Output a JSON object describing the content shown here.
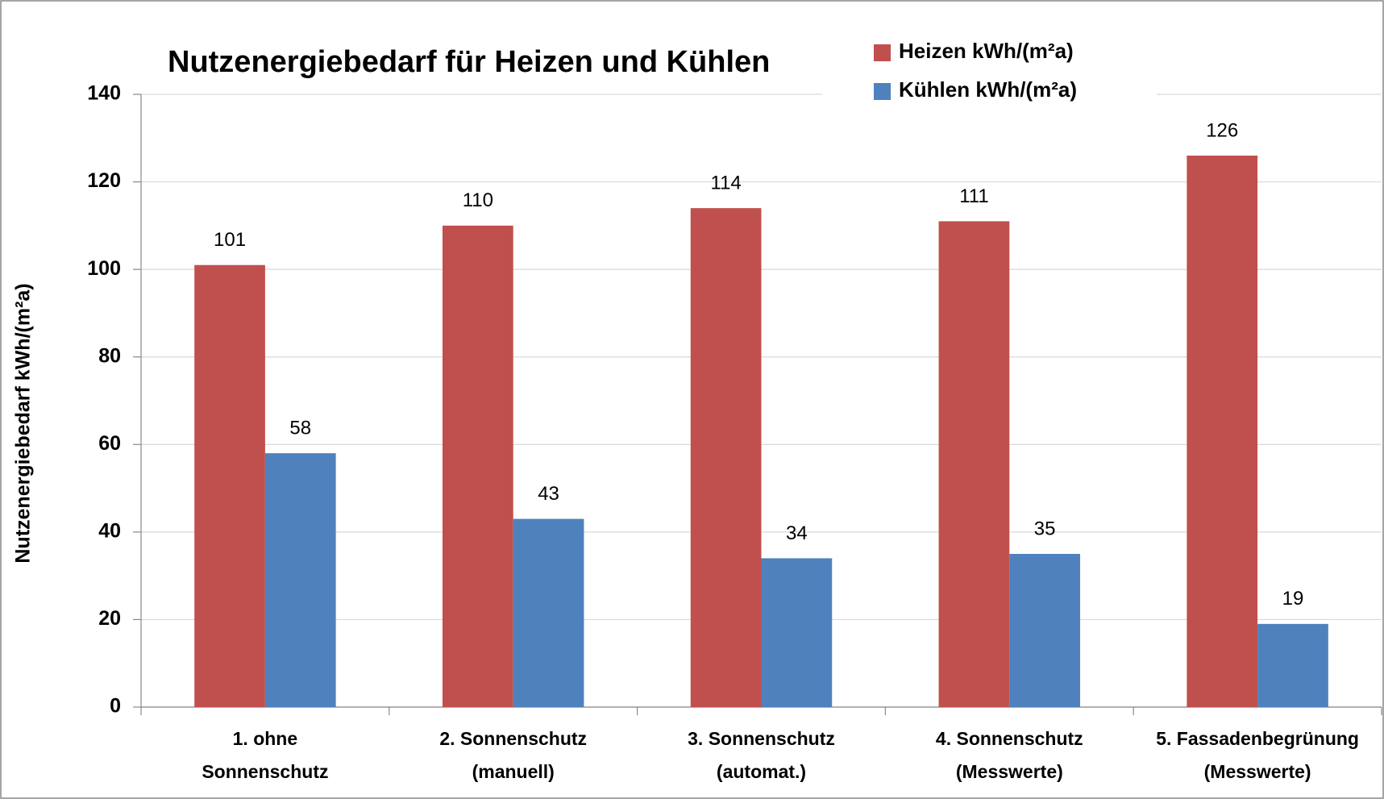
{
  "chart_data": {
    "type": "bar",
    "title": "Nutzenergiebedarf für Heizen und Kühlen",
    "y_label": "Nutzenergiebedarf kWh/(m²a)",
    "categories": [
      [
        "1. ohne",
        "Sonnenschutz"
      ],
      [
        "2. Sonnenschutz",
        "(manuell)"
      ],
      [
        "3. Sonnenschutz",
        "(automat.)"
      ],
      [
        "4. Sonnenschutz",
        "(Messwerte)"
      ],
      [
        "5. Fassadenbegrünung",
        "(Messwerte)"
      ]
    ],
    "series": [
      {
        "name": "Heizen kWh/(m²a)",
        "color": "#c0504d",
        "values": [
          101,
          110,
          114,
          111,
          126
        ]
      },
      {
        "name": "Kühlen kWh/(m²a)",
        "color": "#4f81bd",
        "values": [
          58,
          43,
          34,
          35,
          19
        ]
      }
    ],
    "ylim": [
      0,
      140
    ],
    "yticks": [
      0,
      20,
      40,
      60,
      80,
      100,
      120,
      140
    ],
    "grid": true,
    "legend": "top-right"
  }
}
